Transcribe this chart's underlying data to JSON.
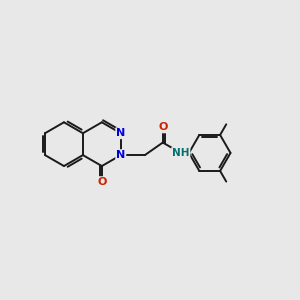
{
  "bg_color": "#e8e8e8",
  "bond_color": "#1a1a1a",
  "N_color": "#0000dd",
  "O_color": "#cc2200",
  "NH_color": "#007070",
  "line_width": 1.4,
  "font_size": 8.0,
  "xlim": [
    0,
    10
  ],
  "ylim": [
    0,
    10
  ],
  "bl": 0.75
}
